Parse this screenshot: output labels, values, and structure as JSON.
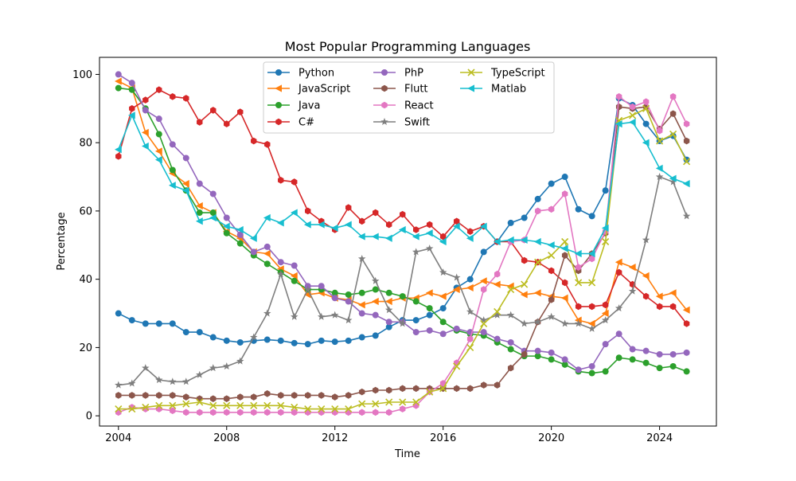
{
  "chart_data": {
    "type": "line",
    "title": "Most Popular Programming Languages",
    "xlabel": "Time",
    "ylabel": "Percentage",
    "xlim": [
      2003.3,
      2026.1
    ],
    "ylim": [
      -3,
      105
    ],
    "x_ticks": [
      2004,
      2008,
      2012,
      2016,
      2020,
      2024
    ],
    "y_ticks": [
      0,
      20,
      40,
      60,
      80,
      100
    ],
    "grid": false,
    "legend_position": "top-center",
    "x": [
      2004.0,
      2004.5,
      2005.0,
      2005.5,
      2006.0,
      2006.5,
      2007.0,
      2007.5,
      2008.0,
      2008.5,
      2009.0,
      2009.5,
      2010.0,
      2010.5,
      2011.0,
      2011.5,
      2012.0,
      2012.5,
      2013.0,
      2013.5,
      2014.0,
      2014.5,
      2015.0,
      2015.5,
      2016.0,
      2016.5,
      2017.0,
      2017.5,
      2018.0,
      2018.5,
      2019.0,
      2019.5,
      2020.0,
      2020.5,
      2021.0,
      2021.5,
      2022.0,
      2022.5,
      2023.0,
      2023.5,
      2024.0,
      2024.5,
      2025.0
    ],
    "series": [
      {
        "name": "Python",
        "color": "#1f77b4",
        "marker": "circle",
        "values": [
          30,
          28,
          27,
          27,
          27,
          24.5,
          24.5,
          23,
          22,
          21.5,
          22,
          22.3,
          22,
          21.3,
          21,
          22,
          21.7,
          22,
          23,
          23.5,
          26,
          28,
          28,
          29.5,
          31.5,
          37.5,
          40,
          48,
          51,
          56.5,
          58,
          63.5,
          68,
          70,
          60.5,
          58.5,
          66,
          93,
          91,
          85.5,
          80.5,
          82,
          75
        ]
      },
      {
        "name": "JavaScript",
        "color": "#ff7f0e",
        "marker": "triangle-left",
        "values": [
          98,
          96,
          83,
          77.5,
          71,
          68,
          61.5,
          59.5,
          54,
          52,
          48,
          47.5,
          43,
          41,
          35.5,
          36,
          34.5,
          34,
          32.5,
          33.5,
          33.5,
          34.5,
          34.5,
          36,
          35,
          37,
          37.5,
          39.5,
          38.5,
          38,
          35.5,
          36,
          35,
          34.5,
          28,
          27,
          30,
          45,
          43.5,
          41,
          35,
          36,
          31
        ]
      },
      {
        "name": "Java",
        "color": "#2ca02c",
        "marker": "circle",
        "values": [
          96,
          95.5,
          90,
          82.5,
          72,
          66,
          59.5,
          59.5,
          53.5,
          50.5,
          47,
          44.5,
          42,
          39.5,
          37,
          37,
          36,
          35.5,
          36,
          37,
          36,
          35,
          33.5,
          31.5,
          27.5,
          25,
          24,
          23.5,
          21.5,
          19.5,
          17.5,
          17.5,
          16.5,
          15,
          13,
          12.5,
          13,
          17,
          16.5,
          15.5,
          14,
          14.5,
          13
        ]
      },
      {
        "name": "C#",
        "color": "#d62728",
        "marker": "hexagon",
        "values": [
          76,
          90,
          92.5,
          95.5,
          93.5,
          93,
          86,
          89.5,
          85.5,
          89,
          80.5,
          79.5,
          69,
          68.5,
          60,
          57,
          54.5,
          61,
          57,
          59.5,
          56,
          59,
          54.5,
          56,
          52.5,
          57,
          54,
          55.5,
          51,
          51,
          45.5,
          45,
          42.5,
          39,
          32,
          32,
          32.5,
          42,
          38.5,
          35,
          32,
          32,
          27
        ]
      },
      {
        "name": "PhP",
        "color": "#9467bd",
        "marker": "circle",
        "values": [
          100,
          97.5,
          89.5,
          87,
          79.5,
          75.5,
          68,
          65,
          58,
          53,
          48,
          49.5,
          45,
          44,
          38,
          38,
          34.5,
          33.5,
          30,
          29.5,
          27.5,
          27.5,
          24.5,
          25,
          24,
          25.5,
          24.5,
          24.5,
          22.5,
          21.5,
          19,
          19,
          18.5,
          16.5,
          13.5,
          14.5,
          21,
          24,
          19.5,
          19,
          18,
          18,
          18.5
        ]
      },
      {
        "name": "Flutt",
        "color": "#8c564b",
        "marker": "hexagon",
        "values": [
          6,
          6,
          6,
          6,
          6,
          5.5,
          5,
          5,
          5,
          5.5,
          5.5,
          6.5,
          6,
          6,
          6,
          6,
          5.5,
          6,
          7,
          7.5,
          7.5,
          8,
          8,
          8,
          8,
          8,
          8,
          9,
          9,
          14,
          18,
          27.5,
          34,
          47,
          42.5,
          47.5,
          53.5,
          90.5,
          90,
          90.5,
          84,
          88.5,
          80.5
        ]
      },
      {
        "name": "React",
        "color": "#e377c2",
        "marker": "hexagon",
        "values": [
          1,
          2.5,
          2,
          2,
          1.5,
          1,
          1,
          1,
          1,
          1,
          1,
          1,
          1,
          1,
          1,
          1,
          1,
          1,
          1,
          1,
          1,
          2,
          3,
          7,
          9.5,
          15.5,
          22.5,
          37,
          41.5,
          51,
          51.5,
          60,
          60.5,
          65,
          43.5,
          46,
          54,
          93.5,
          90.5,
          92,
          83.5,
          93.5,
          85.5
        ]
      },
      {
        "name": "Swift",
        "color": "#7f7f7f",
        "marker": "star",
        "values": [
          9,
          9.5,
          14,
          10.5,
          10,
          10,
          12,
          14,
          14.5,
          16,
          23,
          30,
          41.5,
          29,
          37,
          29,
          29.5,
          28,
          46,
          39.5,
          31,
          27,
          48,
          49,
          42,
          40.5,
          30.5,
          28,
          29.5,
          29.5,
          27,
          27.5,
          29,
          27,
          27,
          25.5,
          28,
          31.5,
          36.5,
          51.5,
          70,
          68.5,
          58.5
        ]
      },
      {
        "name": "TypeScript",
        "color": "#bcbd22",
        "marker": "x",
        "values": [
          2,
          2,
          2.5,
          3,
          3,
          3.5,
          4,
          3,
          3,
          3,
          3,
          3,
          3,
          2.5,
          2,
          2,
          2,
          2,
          3.5,
          3.5,
          4,
          4,
          4,
          7,
          8,
          14.5,
          20,
          27,
          30.5,
          37,
          38.5,
          45,
          47,
          51,
          39,
          39,
          51,
          86.5,
          88,
          90,
          80.5,
          82.5,
          74.5
        ]
      },
      {
        "name": "Matlab",
        "color": "#17becf",
        "marker": "triangle-left",
        "values": [
          78,
          88,
          79,
          75,
          67.5,
          66,
          57,
          58,
          55.5,
          54.5,
          52,
          58,
          56.5,
          59.5,
          56,
          56,
          55,
          56,
          52.5,
          52.5,
          52,
          54.5,
          52.5,
          53.5,
          51,
          55.5,
          52,
          55.5,
          51,
          51.5,
          51.5,
          51,
          50,
          49,
          47.5,
          47.5,
          55,
          85.5,
          86,
          80,
          72.5,
          69.5,
          68
        ]
      }
    ]
  }
}
